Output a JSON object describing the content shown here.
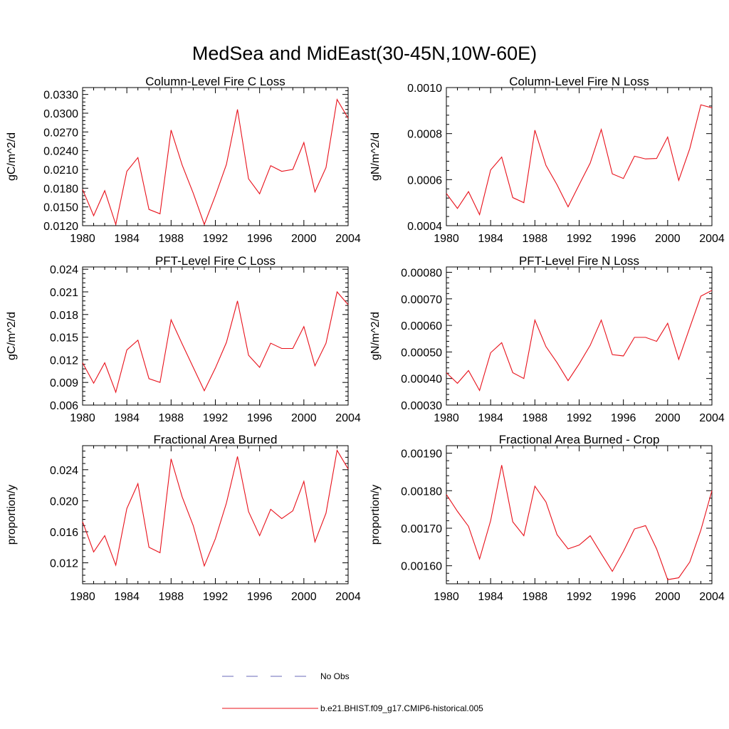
{
  "figure": {
    "title": "MedSea and MidEast(30-45N,10W-60E)"
  },
  "legend": {
    "items": [
      {
        "label": "No Obs",
        "color": "#6a6ab8",
        "style": "dashed"
      },
      {
        "label": "b.e21.BHIST.f09_g17.CMIP6-historical.005",
        "color": "#e8101a",
        "style": "solid"
      }
    ]
  },
  "colors": {
    "series": "#e8101a",
    "axis": "#000000"
  },
  "chart_data": [
    {
      "type": "line",
      "title": "Column-Level Fire C Loss",
      "ylabel": "gC/m^2/d",
      "xlabel": "",
      "x": [
        1980,
        1981,
        1982,
        1983,
        1984,
        1985,
        1986,
        1987,
        1988,
        1989,
        1990,
        1991,
        1992,
        1993,
        1994,
        1995,
        1996,
        1997,
        1998,
        1999,
        2000,
        2001,
        2002,
        2003,
        2004
      ],
      "values": [
        0.0178,
        0.0136,
        0.0176,
        0.0122,
        0.0207,
        0.0229,
        0.0146,
        0.0139,
        0.0273,
        0.0217,
        0.0172,
        0.0122,
        0.0168,
        0.0218,
        0.0306,
        0.0195,
        0.0171,
        0.0216,
        0.0207,
        0.021,
        0.0253,
        0.0174,
        0.0213,
        0.0322,
        0.0292
      ],
      "xlim": [
        1980,
        2004
      ],
      "ylim": [
        0.012,
        0.0341
      ],
      "xticks": [
        1980,
        1984,
        1988,
        1992,
        1996,
        2000,
        2004
      ],
      "xtick_labels": [
        "1980",
        "1984",
        "1988",
        "1992",
        "1996",
        "2000",
        "2004"
      ],
      "yticks": [
        0.012,
        0.015,
        0.018,
        0.021,
        0.024,
        0.027,
        0.03,
        0.033
      ],
      "ytick_labels": [
        "0.0120",
        "0.0150",
        "0.0180",
        "0.0210",
        "0.0240",
        "0.0270",
        "0.0300",
        "0.0330"
      ]
    },
    {
      "type": "line",
      "title": "Column-Level Fire N Loss",
      "ylabel": "gN/m^2/d",
      "xlabel": "",
      "x": [
        1980,
        1981,
        1982,
        1983,
        1984,
        1985,
        1986,
        1987,
        1988,
        1989,
        1990,
        1991,
        1992,
        1993,
        1994,
        1995,
        1996,
        1997,
        1998,
        1999,
        2000,
        2001,
        2002,
        2003,
        2004
      ],
      "values": [
        0.00054,
        0.000475,
        0.000548,
        0.000448,
        0.000642,
        0.000698,
        0.000522,
        0.0005,
        0.000815,
        0.000662,
        0.000578,
        0.000482,
        0.000578,
        0.000672,
        0.000818,
        0.000625,
        0.000605,
        0.000702,
        0.00069,
        0.000692,
        0.000785,
        0.000597,
        0.000735,
        0.000925,
        0.000912
      ],
      "xlim": [
        1980,
        2004
      ],
      "ylim": [
        0.0004,
        0.001
      ],
      "xticks": [
        1980,
        1984,
        1988,
        1992,
        1996,
        2000,
        2004
      ],
      "xtick_labels": [
        "1980",
        "1984",
        "1988",
        "1992",
        "1996",
        "2000",
        "2004"
      ],
      "yticks": [
        0.0004,
        0.0006,
        0.0008,
        0.001
      ],
      "ytick_labels": [
        "0.0004",
        "0.0006",
        "0.0008",
        "0.0010"
      ]
    },
    {
      "type": "line",
      "title": "PFT-Level Fire C Loss",
      "ylabel": "gC/m^2/d",
      "xlabel": "",
      "x": [
        1980,
        1981,
        1982,
        1983,
        1984,
        1985,
        1986,
        1987,
        1988,
        1989,
        1990,
        1991,
        1992,
        1993,
        1994,
        1995,
        1996,
        1997,
        1998,
        1999,
        2000,
        2001,
        2002,
        2003,
        2004
      ],
      "values": [
        0.0116,
        0.0089,
        0.0116,
        0.0077,
        0.0133,
        0.0146,
        0.0095,
        0.009,
        0.0173,
        0.0141,
        0.011,
        0.0079,
        0.0109,
        0.0143,
        0.0198,
        0.0126,
        0.011,
        0.0142,
        0.0135,
        0.0135,
        0.0164,
        0.0112,
        0.0142,
        0.021,
        0.0193
      ],
      "xlim": [
        1980,
        2004
      ],
      "ylim": [
        0.006,
        0.0243
      ],
      "xticks": [
        1980,
        1984,
        1988,
        1992,
        1996,
        2000,
        2004
      ],
      "xtick_labels": [
        "1980",
        "1984",
        "1988",
        "1992",
        "1996",
        "2000",
        "2004"
      ],
      "yticks": [
        0.006,
        0.009,
        0.012,
        0.015,
        0.018,
        0.021,
        0.024
      ],
      "ytick_labels": [
        "0.006",
        "0.009",
        "0.012",
        "0.015",
        "0.018",
        "0.021",
        "0.024"
      ]
    },
    {
      "type": "line",
      "title": "PFT-Level Fire N Loss",
      "ylabel": "gN/m^2/d",
      "xlabel": "",
      "x": [
        1980,
        1981,
        1982,
        1983,
        1984,
        1985,
        1986,
        1987,
        1988,
        1989,
        1990,
        1991,
        1992,
        1993,
        1994,
        1995,
        1996,
        1997,
        1998,
        1999,
        2000,
        2001,
        2002,
        2003,
        2004
      ],
      "values": [
        0.000422,
        0.000382,
        0.00043,
        0.000355,
        0.000497,
        0.000535,
        0.000422,
        0.0004,
        0.00062,
        0.00052,
        0.00046,
        0.000392,
        0.000455,
        0.000525,
        0.00062,
        0.00049,
        0.000485,
        0.000555,
        0.000555,
        0.00054,
        0.000608,
        0.000472,
        0.000592,
        0.00071,
        0.000732
      ],
      "xlim": [
        1980,
        2004
      ],
      "ylim": [
        0.0003,
        0.00082
      ],
      "xticks": [
        1980,
        1984,
        1988,
        1992,
        1996,
        2000,
        2004
      ],
      "xtick_labels": [
        "1980",
        "1984",
        "1988",
        "1992",
        "1996",
        "2000",
        "2004"
      ],
      "yticks": [
        0.0003,
        0.0004,
        0.0005,
        0.0006,
        0.0007,
        0.0008
      ],
      "ytick_labels": [
        "0.00030",
        "0.00040",
        "0.00050",
        "0.00060",
        "0.00070",
        "0.00080"
      ]
    },
    {
      "type": "line",
      "title": "Fractional Area Burned",
      "ylabel": "proportion/y",
      "xlabel": "",
      "x": [
        1980,
        1981,
        1982,
        1983,
        1984,
        1985,
        1986,
        1987,
        1988,
        1989,
        1990,
        1991,
        1992,
        1993,
        1994,
        1995,
        1996,
        1997,
        1998,
        1999,
        2000,
        2001,
        2002,
        2003,
        2004
      ],
      "values": [
        0.0173,
        0.0134,
        0.0155,
        0.0117,
        0.019,
        0.0222,
        0.014,
        0.0133,
        0.0254,
        0.0205,
        0.0168,
        0.0116,
        0.0151,
        0.0197,
        0.0257,
        0.0186,
        0.0155,
        0.0189,
        0.0177,
        0.0187,
        0.0225,
        0.0147,
        0.0184,
        0.0265,
        0.0241
      ],
      "xlim": [
        1980,
        2004
      ],
      "ylim": [
        0.0093,
        0.0271
      ],
      "xticks": [
        1980,
        1984,
        1988,
        1992,
        1996,
        2000,
        2004
      ],
      "xtick_labels": [
        "1980",
        "1984",
        "1988",
        "1992",
        "1996",
        "2000",
        "2004"
      ],
      "yticks": [
        0.012,
        0.016,
        0.02,
        0.024
      ],
      "ytick_labels": [
        "0.012",
        "0.016",
        "0.020",
        "0.024"
      ]
    },
    {
      "type": "line",
      "title": "Fractional Area Burned - Crop",
      "ylabel": "proportion/y",
      "xlabel": "",
      "x": [
        1980,
        1981,
        1982,
        1983,
        1984,
        1985,
        1986,
        1987,
        1988,
        1989,
        1990,
        1991,
        1992,
        1993,
        1994,
        1995,
        1996,
        1997,
        1998,
        1999,
        2000,
        2001,
        2002,
        2003,
        2004
      ],
      "values": [
        0.00179,
        0.001745,
        0.001705,
        0.001618,
        0.00172,
        0.001868,
        0.001717,
        0.00168,
        0.001812,
        0.00177,
        0.001683,
        0.001645,
        0.001655,
        0.00168,
        0.001632,
        0.001585,
        0.001638,
        0.001698,
        0.001707,
        0.001645,
        0.001563,
        0.001568,
        0.00161,
        0.001695,
        0.0018
      ],
      "xlim": [
        1980,
        2004
      ],
      "ylim": [
        0.001552,
        0.00192
      ],
      "xticks": [
        1980,
        1984,
        1988,
        1992,
        1996,
        2000,
        2004
      ],
      "xtick_labels": [
        "1980",
        "1984",
        "1988",
        "1992",
        "1996",
        "2000",
        "2004"
      ],
      "yticks": [
        0.0016,
        0.0017,
        0.0018,
        0.0019
      ],
      "ytick_labels": [
        "0.00160",
        "0.00170",
        "0.00180",
        "0.00190"
      ]
    }
  ]
}
